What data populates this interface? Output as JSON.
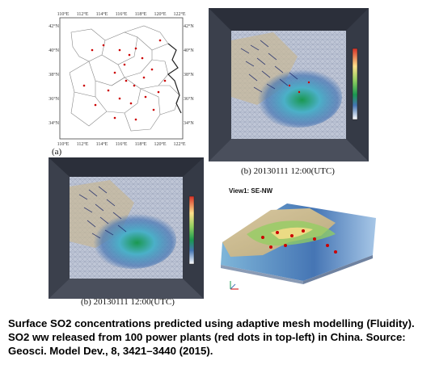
{
  "map": {
    "lon_labels": [
      "110°E",
      "112°E",
      "114°E",
      "116°E",
      "118°E",
      "120°E",
      "122°E"
    ],
    "lat_labels": [
      "42°N",
      "40°N",
      "38°N",
      "36°N",
      "34°N"
    ],
    "panel_label": "(a)"
  },
  "panel_top_caption": "(b) 20130111 12:00(UTC)",
  "panel_bottom_caption": "(b) 20130111 12:00(UTC)",
  "view3d_title": "View1: SE-NW",
  "description": "Surface SO2 concentrations predicted using adaptive mesh modelling (Fluidity). SO2 ww released from 100 power plants (red dots in top-left) in China. Source: Geosci. Model Dev., 8, 3421–3440 (2015).",
  "colors": {
    "colorbar": [
      "#d73027",
      "#fc8d59",
      "#fee08b",
      "#d9ef8b",
      "#91cf60",
      "#1a9850",
      "#4575b4",
      "#ffffff"
    ],
    "point_marker": "#cc0000",
    "mesh_background": "#bfc6d6"
  }
}
